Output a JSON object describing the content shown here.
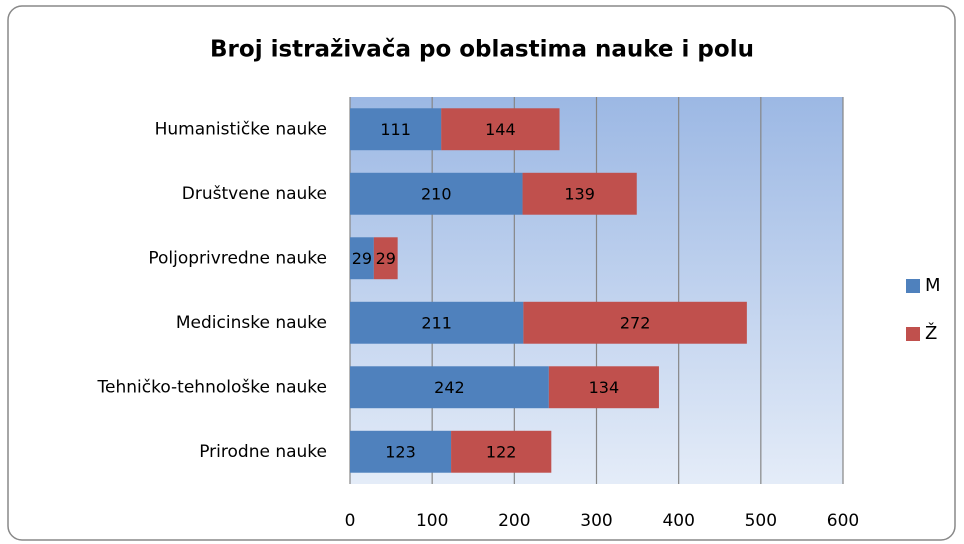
{
  "chart_data": {
    "type": "bar",
    "orientation": "horizontal",
    "stacked": true,
    "title": "Broj istraživača po oblastima nauke i polu",
    "categories": [
      "Humanističke nauke",
      "Društvene nauke",
      "Poljoprivredne nauke",
      "Medicinske nauke",
      "Tehničko-tehnološke nauke",
      "Prirodne nauke"
    ],
    "series": [
      {
        "name": "M",
        "color": "#4f81bd",
        "values": [
          111,
          210,
          29,
          211,
          242,
          123
        ]
      },
      {
        "name": "Ž",
        "color": "#c0504d",
        "values": [
          144,
          139,
          29,
          272,
          134,
          122
        ]
      }
    ],
    "xlim": [
      0,
      600
    ],
    "xticks": [
      0,
      100,
      200,
      300,
      400,
      500,
      600
    ],
    "grid": true,
    "legend": "right"
  }
}
